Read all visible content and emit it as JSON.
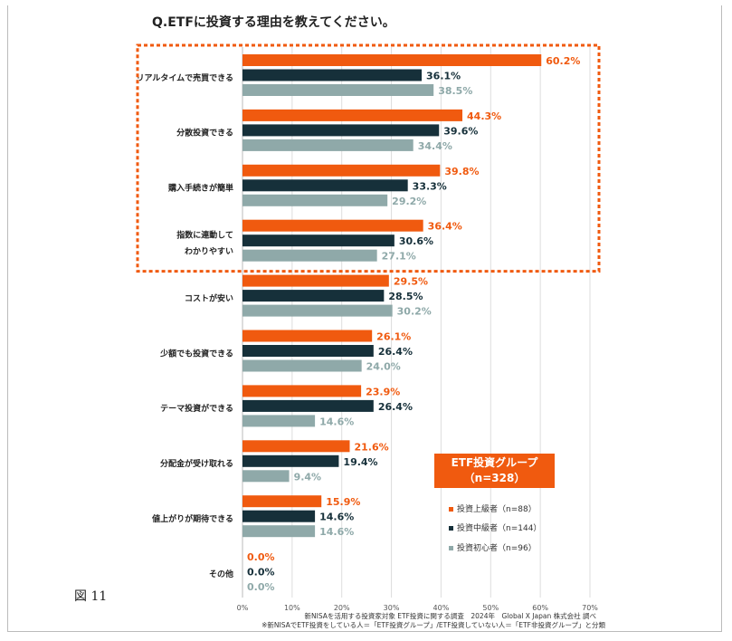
{
  "figure_label": "図 11",
  "chart_data": {
    "type": "bar",
    "orientation": "horizontal",
    "title": "Q.ETFに投資する理由を教えてください。",
    "categories": [
      [
        "リアルタイムで売買できる"
      ],
      [
        "分散投資できる"
      ],
      [
        "購入手続きが簡単"
      ],
      [
        "指数に連動して",
        "わかりやすい"
      ],
      [
        "コストが安い"
      ],
      [
        "少額でも投資できる"
      ],
      [
        "テーマ投資ができる"
      ],
      [
        "分配金が受け取れる"
      ],
      [
        "値上がりが期待できる"
      ],
      [
        "その他"
      ]
    ],
    "series": [
      {
        "name": "投資上級者（n=88）",
        "color": "#f05a0f",
        "values": [
          60.2,
          44.3,
          39.8,
          36.4,
          29.5,
          26.1,
          23.9,
          21.6,
          15.9,
          0.0
        ]
      },
      {
        "name": "投資中級者（n=144）",
        "color": "#16303a",
        "values": [
          36.1,
          39.6,
          33.3,
          30.6,
          28.5,
          26.4,
          26.4,
          19.4,
          14.6,
          0.0
        ]
      },
      {
        "name": "投資初心者（n=96）",
        "color": "#8fa9a9",
        "values": [
          38.5,
          34.4,
          29.2,
          27.1,
          30.2,
          24.0,
          14.6,
          9.4,
          14.6,
          0.0
        ]
      }
    ],
    "label_colors": [
      "#f05a0f",
      "#16303a",
      "#8fa9a9"
    ],
    "xlim": [
      0,
      70
    ],
    "xticks": [
      "0%",
      "10%",
      "20%",
      "30%",
      "40%",
      "50%",
      "60%",
      "70%"
    ],
    "grid": true,
    "legend_title": [
      "ETF投資グループ",
      "（n=328）"
    ],
    "legend_position": "bottom-right",
    "highlight_group_count": 4
  },
  "source": [
    "新NISAを活用する投資家対象 ETF投資に関する調査　2024年　Global X Japan 株式会社 調べ",
    "※新NISAでETF投資をしている人＝「ETF投資グループ」/ETF投資していない人＝「ETF非投資グループ」と分類"
  ]
}
